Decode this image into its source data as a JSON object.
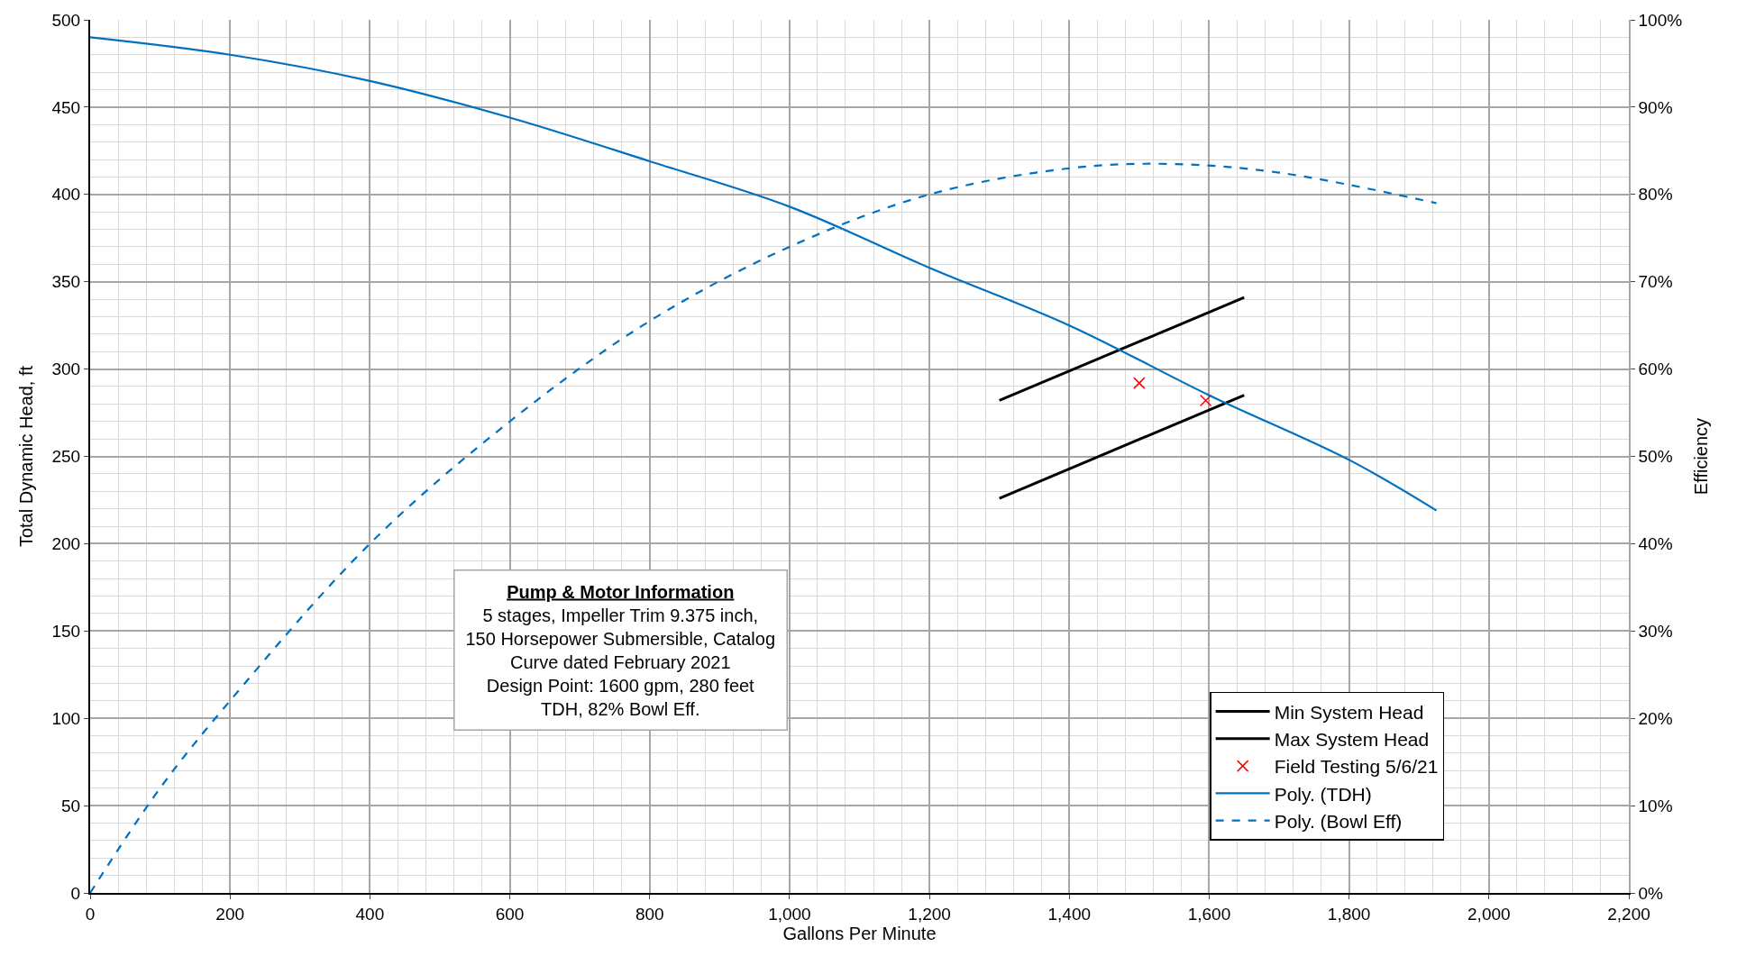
{
  "chart_data": {
    "type": "line",
    "xlabel": "Gallons Per Minute",
    "ylabel": "Total Dynamic Head, ft",
    "y2label": "Efficiency",
    "xlim": [
      0,
      2200
    ],
    "xticks": [
      0,
      200,
      400,
      600,
      800,
      {
        "value": 1000,
        "label": "1,000"
      },
      {
        "value": 1200,
        "label": "1,200"
      },
      {
        "value": 1400,
        "label": "1,400"
      },
      {
        "value": 1600,
        "label": "1,600"
      },
      {
        "value": 1800,
        "label": "1,800"
      },
      {
        "value": 2000,
        "label": "2,000"
      },
      {
        "value": 2200,
        "label": "2,200"
      }
    ],
    "ylim": [
      0,
      500
    ],
    "yticks": [
      0,
      50,
      100,
      150,
      200,
      250,
      300,
      350,
      400,
      450,
      500
    ],
    "y2lim": [
      0,
      100
    ],
    "y2ticks": [
      {
        "value": 0,
        "label": "0%"
      },
      {
        "value": 10,
        "label": "10%"
      },
      {
        "value": 20,
        "label": "20%"
      },
      {
        "value": 30,
        "label": "30%"
      },
      {
        "value": 40,
        "label": "40%"
      },
      {
        "value": 50,
        "label": "50%"
      },
      {
        "value": 60,
        "label": "60%"
      },
      {
        "value": 70,
        "label": "70%"
      },
      {
        "value": 80,
        "label": "80%"
      },
      {
        "value": 90,
        "label": "90%"
      },
      {
        "value": 100,
        "label": "100%"
      }
    ],
    "grid": true,
    "legend": "bottom right",
    "series": [
      {
        "name": "Min System Head",
        "color": "#000000",
        "x": [
          1300,
          1650
        ],
        "values": [
          282,
          341
        ]
      },
      {
        "name": "Max System Head",
        "color": "#000000",
        "x": [
          1300,
          1650
        ],
        "values": [
          226,
          285
        ]
      },
      {
        "name": "Field Testing 5/6/21",
        "type": "scatter",
        "marker": "cross",
        "color": "#ff0000",
        "x": [
          1500,
          1595
        ],
        "values": [
          292,
          282
        ]
      },
      {
        "name": "Poly. (TDH)",
        "color": "#0070c0",
        "line_style": "solid",
        "x": [
          0,
          200,
          400,
          600,
          800,
          1000,
          1200,
          1400,
          1600,
          1800,
          1925
        ],
        "values": [
          490,
          480,
          465,
          444,
          419,
          393,
          358,
          325,
          285,
          248,
          219
        ]
      },
      {
        "name": "Poly. (Bowl Eff)",
        "axis": "y2",
        "color": "#0070c0",
        "line_style": "dashed",
        "x": [
          0,
          100,
          200,
          400,
          600,
          800,
          1000,
          1200,
          1400,
          1540,
          1700,
          1925
        ],
        "values": [
          0,
          12,
          22,
          40,
          54,
          65.5,
          74,
          80,
          83,
          83.5,
          82.5,
          79
        ]
      }
    ],
    "annotations": [
      "Pump & Motor Information",
      "5 stages, Impeller Trim 9.375 inch, 150 Horsepower Submersible, Catalog Curve dated February 2021",
      "Design Point: 1600 gpm, 280 feet TDH, 82% Bowl Eff."
    ]
  }
}
